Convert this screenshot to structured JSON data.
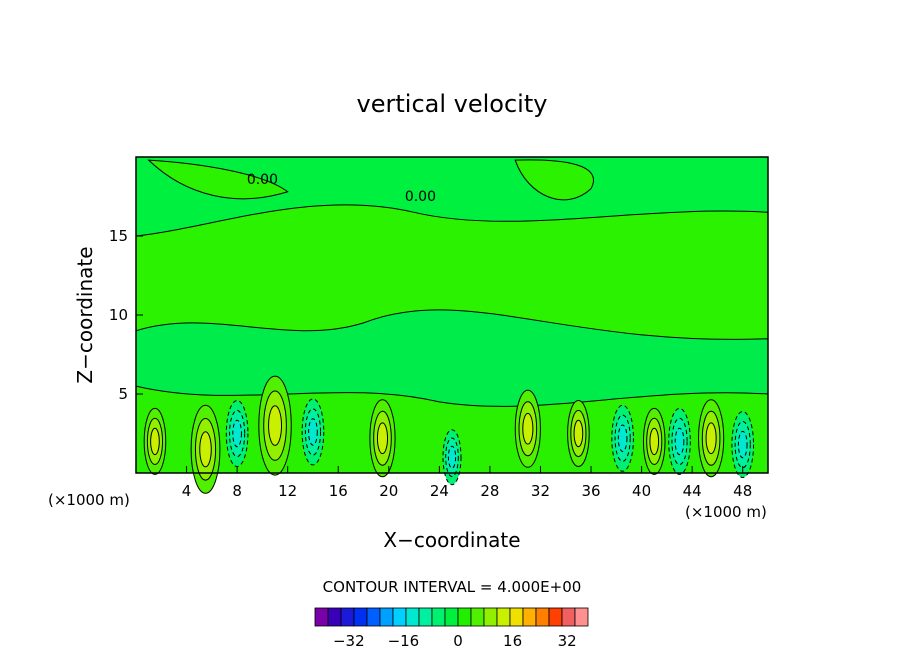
{
  "chart_data": {
    "type": "heatmap",
    "title": "vertical velocity",
    "xlabel": "X−coordinate",
    "ylabel": "Z−coordinate",
    "x_unit": "(×1000 m)",
    "x_unit_right": "(×1000 m)",
    "xlim": [
      0,
      50
    ],
    "ylim": [
      0,
      20
    ],
    "x_ticks": [
      4,
      8,
      12,
      16,
      20,
      24,
      28,
      32,
      36,
      40,
      44,
      48
    ],
    "y_ticks": [
      5,
      10,
      15
    ],
    "contour_labels": [
      {
        "text": "0.00",
        "x": 10,
        "y": 18.3
      },
      {
        "text": "0.00",
        "x": 22.5,
        "y": 17.2
      }
    ],
    "contour_interval": "CONTOUR INTERVAL = 4.000E+00",
    "colorbar": {
      "levels": [
        -40,
        -36,
        -32,
        -28,
        -24,
        -20,
        -16,
        -12,
        -8,
        -4,
        0,
        4,
        8,
        12,
        16,
        20,
        24,
        28,
        32,
        36,
        40
      ],
      "colors": [
        "#7a00a8",
        "#3a00b8",
        "#1a1ad8",
        "#0030f0",
        "#0060ff",
        "#00a0ff",
        "#00d0ff",
        "#00e8d0",
        "#00f0a0",
        "#00f070",
        "#00f040",
        "#20f000",
        "#50f000",
        "#90f000",
        "#c8f000",
        "#f0e000",
        "#ffb000",
        "#ff8000",
        "#ff4000",
        "#f06060",
        "#ff9090"
      ],
      "tick_labels": [
        "−32",
        "−16",
        "0",
        "16",
        "32"
      ],
      "tick_values": [
        -32,
        -16,
        0,
        16,
        32
      ]
    },
    "features": [
      {
        "kind": "updraft",
        "x": 11,
        "y": 3.0,
        "w": 0.9
      },
      {
        "kind": "updraft",
        "x": 19.5,
        "y": 2.2,
        "w": 0.7
      },
      {
        "kind": "updraft",
        "x": 31,
        "y": 2.8,
        "w": 0.7
      },
      {
        "kind": "updraft",
        "x": 35,
        "y": 2.5,
        "w": 0.6
      },
      {
        "kind": "updraft",
        "x": 41,
        "y": 2.0,
        "w": 0.6
      },
      {
        "kind": "updraft",
        "x": 45.5,
        "y": 2.2,
        "w": 0.7
      },
      {
        "kind": "updraft",
        "x": 5.5,
        "y": 1.5,
        "w": 0.8
      },
      {
        "kind": "updraft",
        "x": 1.5,
        "y": 2.0,
        "w": 0.6
      },
      {
        "kind": "downdraft",
        "x": 14,
        "y": 2.6,
        "w": 0.6
      },
      {
        "kind": "downdraft",
        "x": 8,
        "y": 2.5,
        "w": 0.6
      },
      {
        "kind": "downdraft",
        "x": 38.5,
        "y": 2.2,
        "w": 0.6
      },
      {
        "kind": "downdraft",
        "x": 43,
        "y": 2.0,
        "w": 0.6
      },
      {
        "kind": "downdraft",
        "x": 48,
        "y": 1.8,
        "w": 0.6
      },
      {
        "kind": "downdraft",
        "x": 25,
        "y": 1.0,
        "w": 0.5
      }
    ]
  }
}
